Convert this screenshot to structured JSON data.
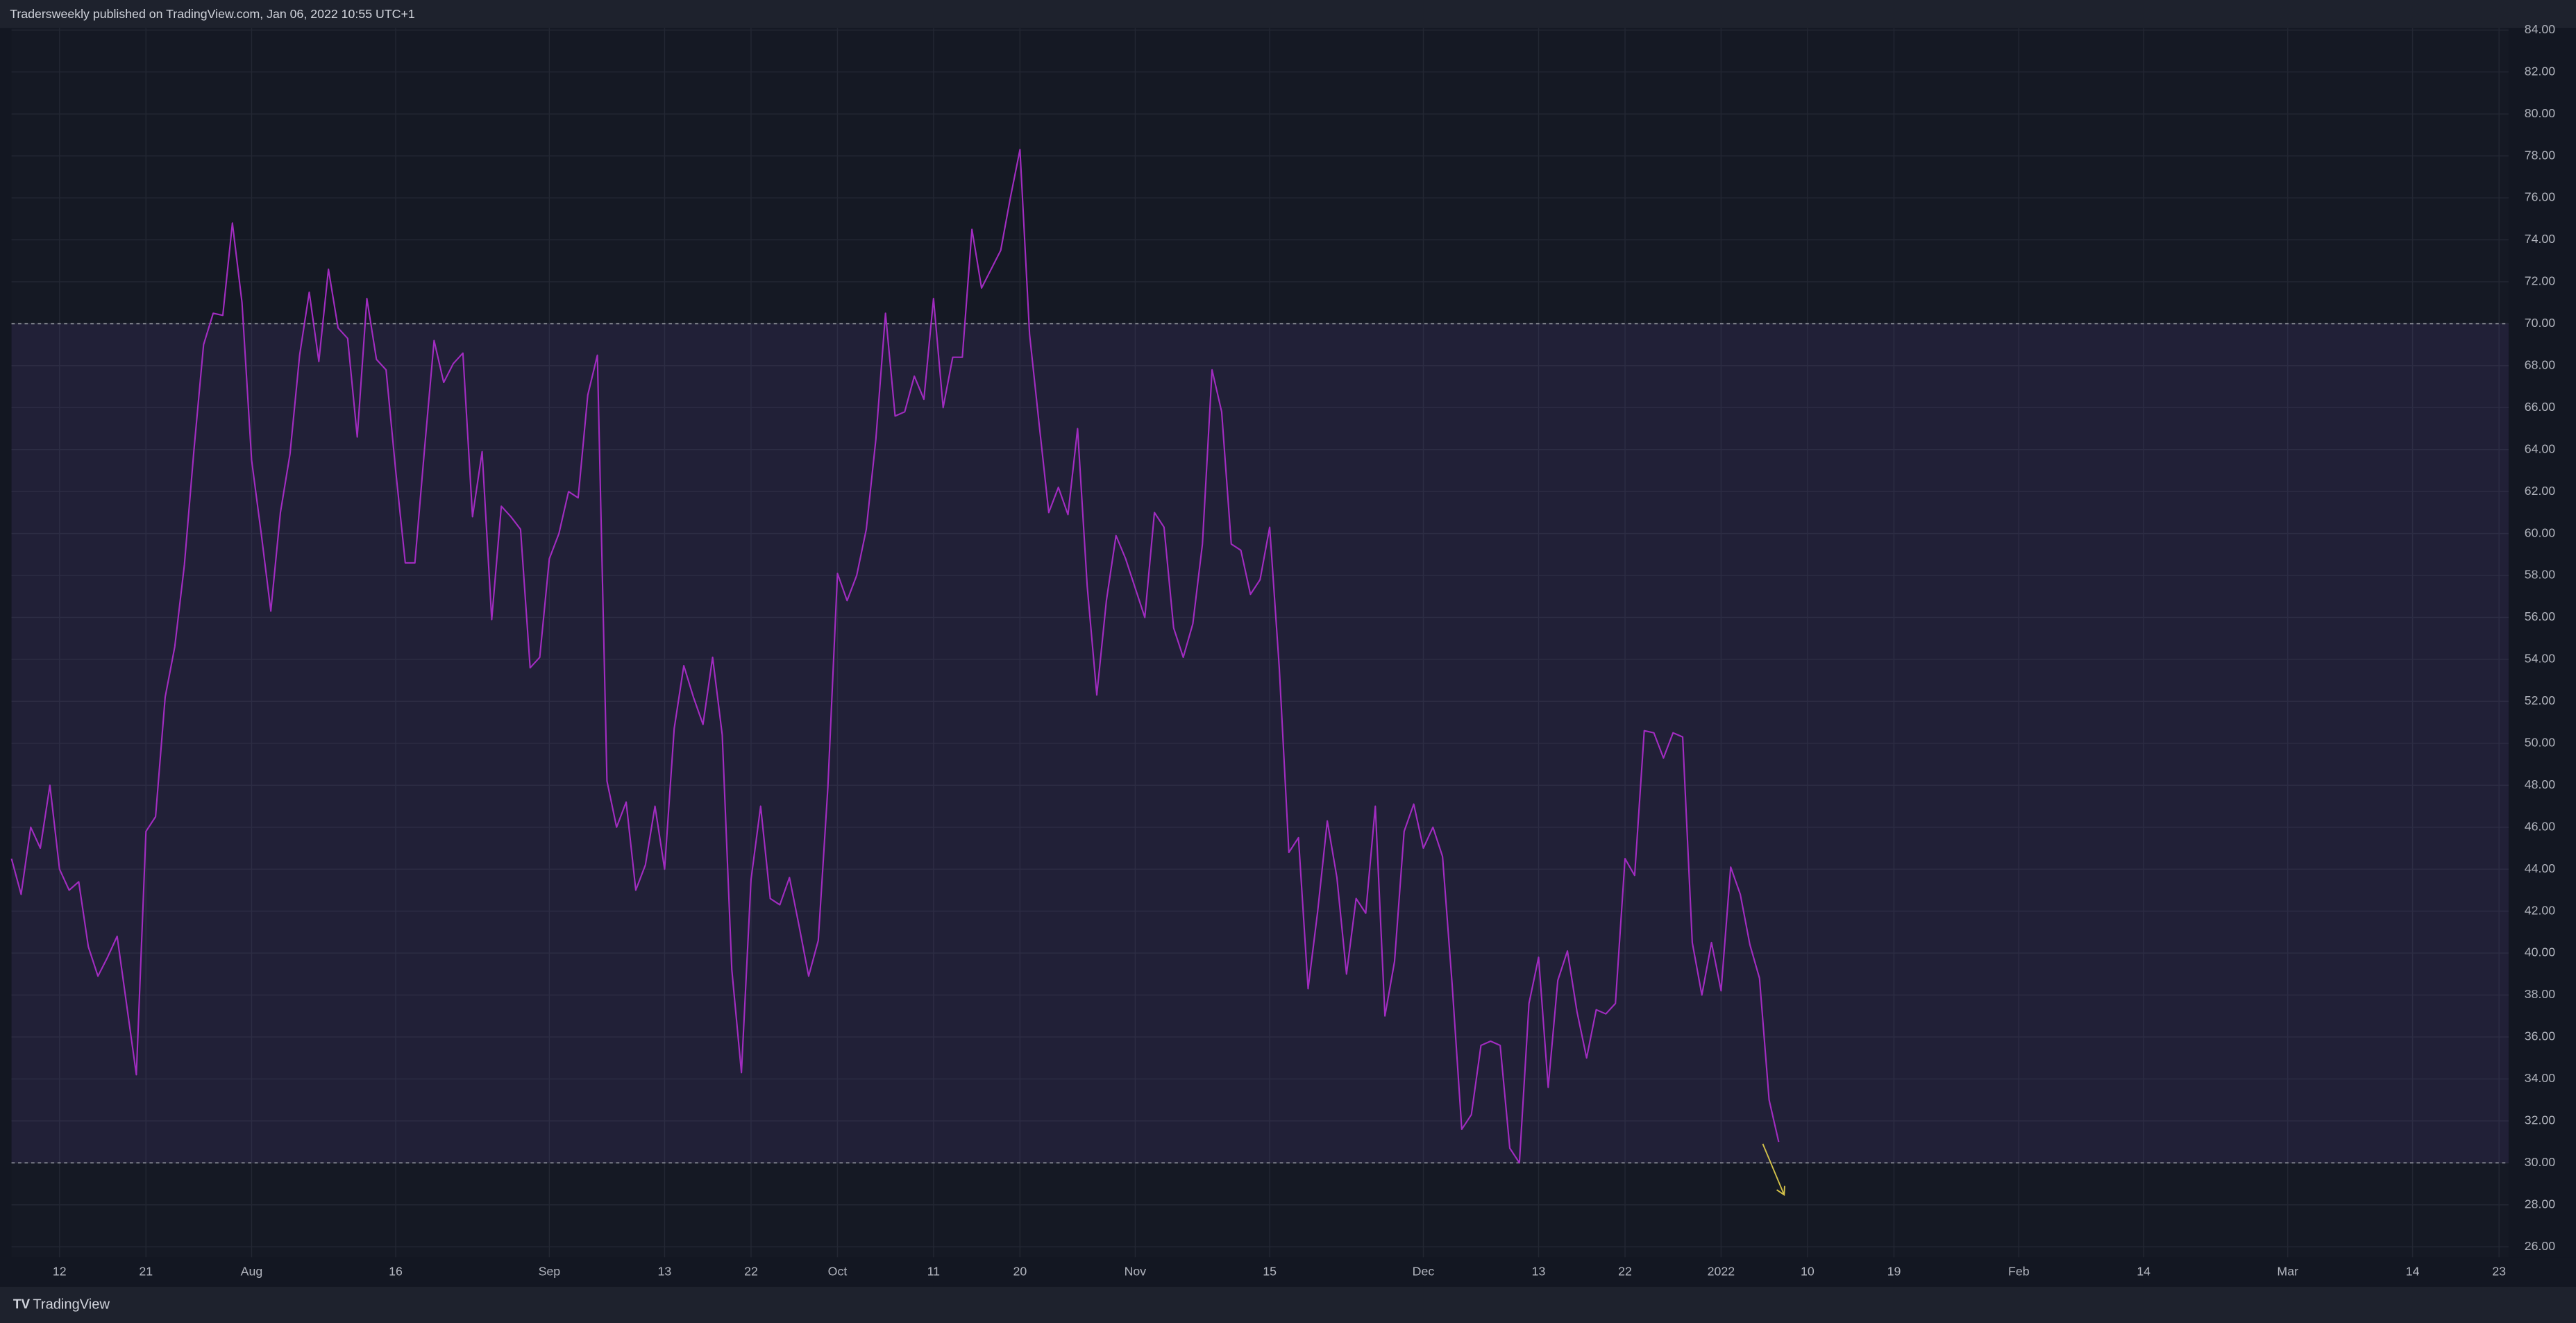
{
  "header": {
    "title": "Tradersweekly published on TradingView.com, Jan 06, 2022 10:55 UTC+1"
  },
  "footer": {
    "brand": "TradingView"
  },
  "chart_data": {
    "type": "line",
    "series": [
      {
        "color": "#a12cc0",
        "values": [
          44.5,
          42.8,
          46,
          45,
          48,
          44,
          43,
          43.4,
          40.3,
          38.9,
          39.8,
          40.8,
          37.5,
          34.2,
          45.8,
          46.5,
          52.2,
          54.6,
          58.5,
          64,
          69,
          70.5,
          70.4,
          74.8,
          71,
          63.5,
          60,
          56.3,
          61,
          63.8,
          68.5,
          71.5,
          68.2,
          72.6,
          69.8,
          69.3,
          64.6,
          71.2,
          68.3,
          67.8,
          63,
          58.6,
          58.6,
          64,
          69.2,
          67.2,
          68.1,
          68.6,
          60.8,
          63.9,
          55.9,
          61.3,
          60.8,
          60.2,
          53.6,
          54.1,
          58.8,
          60,
          62,
          61.7,
          66.6,
          68.5,
          48.2,
          46,
          47.2,
          43,
          44.2,
          47,
          44,
          50.7,
          53.7,
          52.2,
          50.9,
          54.1,
          50.4,
          39.2,
          34.3,
          43.5,
          47,
          42.6,
          42.3,
          43.6,
          41.3,
          38.9,
          40.6,
          47.9,
          58.1,
          56.8,
          58,
          60.2,
          64.5,
          70.5,
          65.6,
          65.8,
          67.5,
          66.4,
          71.2,
          66,
          68.4,
          68.4,
          74.5,
          71.7,
          72.6,
          73.5,
          76,
          78.3,
          69.5,
          65.2,
          61,
          62.2,
          60.9,
          65,
          57.5,
          52.3,
          56.8,
          59.9,
          58.8,
          57.4,
          56,
          61,
          60.3,
          55.5,
          54.1,
          55.7,
          59.5,
          67.8,
          65.8,
          59.5,
          59.2,
          57.1,
          57.8,
          60.3,
          53.6,
          44.8,
          45.5,
          38.3,
          42,
          46.3,
          43.6,
          39,
          42.6,
          41.9,
          47,
          37,
          39.6,
          45.8,
          47.1,
          45,
          46,
          44.6,
          38.5,
          31.6,
          32.3,
          35.6,
          35.8,
          35.6,
          30.7,
          30,
          37.6,
          39.8,
          33.6,
          38.7,
          40.1,
          37.2,
          35,
          37.3,
          37.1,
          37.6,
          44.5,
          43.7,
          50.6,
          50.5,
          49.3,
          50.5,
          50.3,
          40.5,
          38,
          40.5,
          38.2,
          44.1,
          42.8,
          40.4,
          38.8,
          33,
          31
        ]
      }
    ],
    "band": {
      "upper": 70,
      "lower": 30,
      "color": "#7e57c2"
    },
    "xlim": [
      0,
      260
    ],
    "xticks": [
      {
        "value": 5,
        "label": "12"
      },
      {
        "value": 14,
        "label": "21"
      },
      {
        "value": 25,
        "label": "Aug"
      },
      {
        "value": 40,
        "label": "16"
      },
      {
        "value": 56,
        "label": "Sep"
      },
      {
        "value": 68,
        "label": "13"
      },
      {
        "value": 77,
        "label": "22"
      },
      {
        "value": 86,
        "label": "Oct"
      },
      {
        "value": 96,
        "label": "11"
      },
      {
        "value": 105,
        "label": "20"
      },
      {
        "value": 117,
        "label": "Nov"
      },
      {
        "value": 131,
        "label": "15"
      },
      {
        "value": 147,
        "label": "Dec"
      },
      {
        "value": 159,
        "label": "13"
      },
      {
        "value": 168,
        "label": "22"
      },
      {
        "value": 178,
        "label": "2022"
      },
      {
        "value": 187,
        "label": "10"
      },
      {
        "value": 196,
        "label": "19"
      },
      {
        "value": 209,
        "label": "Feb"
      },
      {
        "value": 222,
        "label": "14"
      },
      {
        "value": 237,
        "label": "Mar"
      },
      {
        "value": 250,
        "label": "14"
      },
      {
        "value": 259,
        "label": "23"
      }
    ],
    "ylim": [
      25.5,
      84.1
    ],
    "yticks": [
      {
        "value": 26,
        "label": "26.00"
      },
      {
        "value": 28,
        "label": "28.00"
      },
      {
        "value": 30,
        "label": "30.00"
      },
      {
        "value": 32,
        "label": "32.00"
      },
      {
        "value": 34,
        "label": "34.00"
      },
      {
        "value": 36,
        "label": "36.00"
      },
      {
        "value": 38,
        "label": "38.00"
      },
      {
        "value": 40,
        "label": "40.00"
      },
      {
        "value": 42,
        "label": "42.00"
      },
      {
        "value": 44,
        "label": "44.00"
      },
      {
        "value": 46,
        "label": "46.00"
      },
      {
        "value": 48,
        "label": "48.00"
      },
      {
        "value": 50,
        "label": "50.00"
      },
      {
        "value": 52,
        "label": "52.00"
      },
      {
        "value": 54,
        "label": "54.00"
      },
      {
        "value": 56,
        "label": "56.00"
      },
      {
        "value": 58,
        "label": "58.00"
      },
      {
        "value": 60,
        "label": "60.00"
      },
      {
        "value": 62,
        "label": "62.00"
      },
      {
        "value": 64,
        "label": "64.00"
      },
      {
        "value": 66,
        "label": "66.00"
      },
      {
        "value": 68,
        "label": "68.00"
      },
      {
        "value": 70,
        "label": "70.00"
      },
      {
        "value": 72,
        "label": "72.00"
      },
      {
        "value": 74,
        "label": "74.00"
      },
      {
        "value": 76,
        "label": "76.00"
      },
      {
        "value": 78,
        "label": "78.00"
      },
      {
        "value": 80,
        "label": "80.00"
      },
      {
        "value": 82,
        "label": "82.00"
      },
      {
        "value": 84,
        "label": "84.00"
      }
    ],
    "grid": true
  }
}
